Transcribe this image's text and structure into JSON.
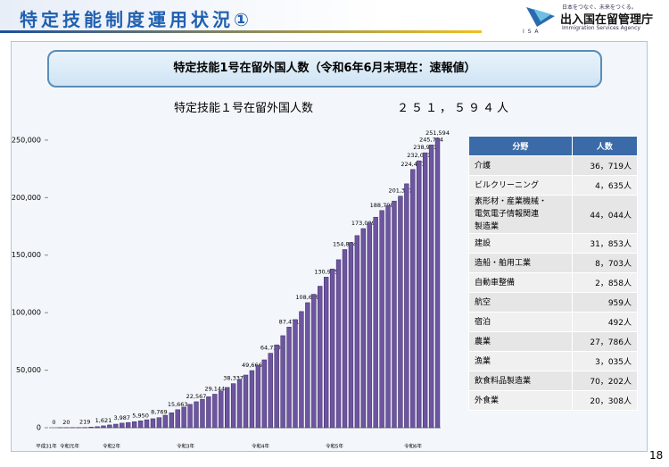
{
  "header": {
    "title": "特定技能制度運用状況①",
    "tagline": "日本をつなぐ、未来をつくる。",
    "logo_mark": "I S A",
    "agency": "出入国在留管理庁",
    "agency_en": "Immigration Services Agency",
    "page": "18"
  },
  "banner": "特定技能1号在留外国人数（令和6年6月末現在：速報値）",
  "summary": {
    "label": "特定技能１号在留外国人数",
    "total": "２５１，５９４人"
  },
  "chart_data": {
    "type": "bar",
    "categories": [
      null,
      null,
      null,
      null,
      null,
      null,
      null,
      null,
      null,
      null,
      null,
      null,
      null,
      null,
      null,
      null,
      null,
      null,
      null,
      null,
      null,
      null,
      null,
      null,
      null,
      null,
      null,
      null,
      null,
      null,
      null,
      null,
      null,
      null,
      null,
      null,
      null,
      null,
      null,
      null,
      null,
      null,
      null,
      null,
      null,
      null,
      null,
      null,
      null,
      null,
      null,
      null,
      null,
      null,
      null,
      null,
      null,
      null,
      null,
      null,
      null,
      null,
      null
    ],
    "values": [
      0,
      7,
      20,
      100,
      150,
      219,
      500,
      895,
      1621,
      2400,
      3100,
      3987,
      4500,
      5200,
      5950,
      6900,
      7800,
      8769,
      10800,
      13000,
      15663,
      17900,
      20300,
      22567,
      24700,
      26900,
      29144,
      32000,
      35000,
      38337,
      42000,
      45800,
      49666,
      54000,
      59000,
      64730,
      72000,
      80000,
      87471,
      94000,
      101000,
      108699,
      116000,
      123000,
      130915,
      138000,
      146000,
      154864,
      161000,
      167000,
      173089,
      178000,
      183000,
      188790,
      193000,
      197000,
      201307,
      212000,
      224467,
      232001,
      238981,
      245784,
      251594
    ],
    "value_labels": [
      "0",
      null,
      "20",
      null,
      null,
      "219",
      null,
      null,
      "1,621",
      null,
      null,
      "3,987",
      null,
      null,
      "5,950",
      null,
      null,
      "8,769",
      null,
      null,
      "15,663",
      null,
      null,
      "22,567",
      null,
      null,
      "29,144",
      null,
      null,
      "38,337",
      null,
      null,
      "49,666",
      null,
      null,
      "64,730",
      null,
      null,
      "87,471",
      null,
      null,
      "108,699",
      null,
      null,
      "130,915",
      null,
      null,
      "154,864",
      null,
      null,
      "173,089",
      null,
      null,
      "188,790",
      null,
      null,
      "201,307",
      null,
      "224,467",
      "232,001",
      "238,981",
      "245,784",
      "251,594"
    ],
    "eras": [
      "平成31年",
      "令和元年",
      "令和2年",
      "令和3年",
      "令和4年",
      "令和5年",
      "令和6年"
    ],
    "color": "#6e55a0",
    "ylim": [
      0,
      260000
    ],
    "yticks": [
      0,
      {
        "value": 50000,
        "label": "50,000"
      },
      {
        "value": 100000,
        "label": "100,000"
      },
      {
        "value": 150000,
        "label": "150,000"
      },
      {
        "value": 200000,
        "label": "200,000"
      },
      {
        "value": 250000,
        "label": "250,000"
      }
    ],
    "grid": false
  },
  "table": {
    "header": [
      "分野",
      "人数"
    ],
    "rows": [
      [
        "介護",
        "36，719人"
      ],
      [
        "ビルクリーニング",
        "4，635人"
      ],
      [
        "素形材・産業機械・\n電気電子情報関連\n製造業",
        "44，044人"
      ],
      [
        "建設",
        "31，853人"
      ],
      [
        "造船・舶用工業",
        "8，703人"
      ],
      [
        "自動車整備",
        "2，858人"
      ],
      [
        "航空",
        "959人"
      ],
      [
        "宿泊",
        "492人"
      ],
      [
        "農業",
        "27，786人"
      ],
      [
        "漁業",
        "3，035人"
      ],
      [
        "飲食料品製造業",
        "70，202人"
      ],
      [
        "外食業",
        "20，308人"
      ]
    ]
  }
}
